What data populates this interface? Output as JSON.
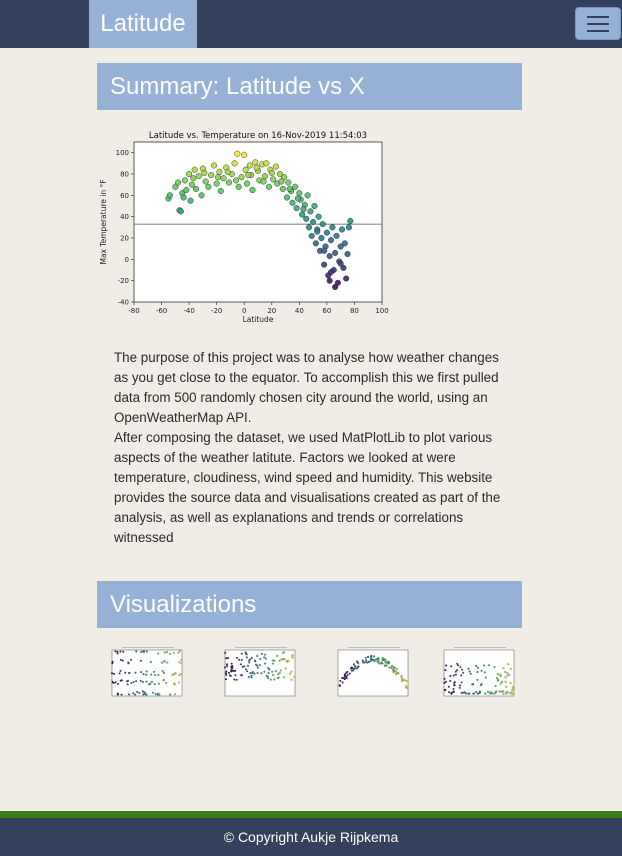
{
  "navbar": {
    "brand": "Latitude",
    "menu_icon": "hamburger-icon"
  },
  "summary": {
    "heading": "Summary: Latitude vs X",
    "paragraph1": "The purpose of this project was to analyse how weather changes as you get close to the equator. To accomplish this we first pulled data from 500 randomly chosen city around the world, using an OpenWeatherMap API.",
    "paragraph2": "After composing the dataset, we used MatPlotLib to plot various aspects of the weather latitute. Factors we looked at were temperature, cloudiness, wind speed and humidity. This website provides the source data and visualisations created as part of the analysis, as well as explanations and trends or correlations witnessed"
  },
  "visualizations": {
    "heading": "Visualizations",
    "thumbnails": [
      "cloudiness-thumbnail",
      "humidity-thumbnail",
      "temperature-thumbnail",
      "wind-speed-thumbnail"
    ]
  },
  "footer": {
    "text": "© Copyright Aukje Rijpkema",
    "accent_color": "#3a7d17"
  },
  "colors": {
    "nav": "#33415c",
    "accent": "#95b1d6",
    "background": "#efede6"
  },
  "chart_data": {
    "type": "scatter",
    "title": "Latitude vs. Temperature on 16-Nov-2019 11:54:03",
    "xlabel": "Latitude",
    "ylabel": "Max Temperature in °F",
    "xlim": [
      -80,
      100
    ],
    "ylim": [
      -40,
      110
    ],
    "xticks": [
      -80,
      -60,
      -40,
      -20,
      0,
      20,
      40,
      60,
      80,
      100
    ],
    "yticks": [
      -40,
      -20,
      0,
      20,
      40,
      60,
      80,
      100
    ],
    "hline": 33,
    "grid": false,
    "points": [
      [
        -55,
        57
      ],
      [
        -54,
        60
      ],
      [
        -50,
        68
      ],
      [
        -48,
        72
      ],
      [
        -47,
        46
      ],
      [
        -46,
        45
      ],
      [
        -45,
        62
      ],
      [
        -43,
        74
      ],
      [
        -42,
        65
      ],
      [
        -40,
        80
      ],
      [
        -39,
        55
      ],
      [
        -38,
        70
      ],
      [
        -36,
        84
      ],
      [
        -35,
        66
      ],
      [
        -33,
        78
      ],
      [
        -31,
        60
      ],
      [
        -30,
        85
      ],
      [
        -28,
        73
      ],
      [
        -26,
        68
      ],
      [
        -24,
        79
      ],
      [
        -22,
        88
      ],
      [
        -20,
        71
      ],
      [
        -18,
        82
      ],
      [
        -17,
        64
      ],
      [
        -15,
        76
      ],
      [
        -13,
        86
      ],
      [
        -11,
        72
      ],
      [
        -9,
        80
      ],
      [
        -7,
        90
      ],
      [
        -5,
        99
      ],
      [
        -4,
        68
      ],
      [
        -2,
        77
      ],
      [
        0,
        98
      ],
      [
        1,
        84
      ],
      [
        2,
        71
      ],
      [
        4,
        88
      ],
      [
        5,
        79
      ],
      [
        6,
        65
      ],
      [
        8,
        91
      ],
      [
        10,
        83
      ],
      [
        11,
        74
      ],
      [
        13,
        89
      ],
      [
        15,
        78
      ],
      [
        16,
        90
      ],
      [
        18,
        68
      ],
      [
        19,
        84
      ],
      [
        21,
        75
      ],
      [
        23,
        87
      ],
      [
        24,
        71
      ],
      [
        26,
        80
      ],
      [
        28,
        66
      ],
      [
        29,
        77
      ],
      [
        31,
        58
      ],
      [
        32,
        72
      ],
      [
        34,
        64
      ],
      [
        35,
        53
      ],
      [
        37,
        68
      ],
      [
        38,
        48
      ],
      [
        40,
        62
      ],
      [
        41,
        56
      ],
      [
        42,
        42
      ],
      [
        44,
        51
      ],
      [
        45,
        38
      ],
      [
        46,
        60
      ],
      [
        47,
        30
      ],
      [
        48,
        45
      ],
      [
        49,
        22
      ],
      [
        50,
        35
      ],
      [
        51,
        50
      ],
      [
        52,
        15
      ],
      [
        53,
        28
      ],
      [
        54,
        40
      ],
      [
        55,
        8
      ],
      [
        56,
        20
      ],
      [
        57,
        33
      ],
      [
        58,
        -5
      ],
      [
        59,
        12
      ],
      [
        60,
        25
      ],
      [
        61,
        -15
      ],
      [
        62,
        3
      ],
      [
        63,
        18
      ],
      [
        64,
        30
      ],
      [
        65,
        -10
      ],
      [
        66,
        6
      ],
      [
        67,
        22
      ],
      [
        68,
        -22
      ],
      [
        69,
        -2
      ],
      [
        70,
        12
      ],
      [
        71,
        28
      ],
      [
        72,
        -8
      ],
      [
        73,
        15
      ],
      [
        74,
        -18
      ],
      [
        75,
        5
      ],
      [
        76,
        30
      ],
      [
        77,
        36
      ],
      [
        -44,
        58
      ],
      [
        -37,
        76
      ],
      [
        -29,
        81
      ],
      [
        -19,
        77
      ],
      [
        -12,
        82
      ],
      [
        -6,
        74
      ],
      [
        3,
        79
      ],
      [
        9,
        86
      ],
      [
        14,
        73
      ],
      [
        20,
        81
      ],
      [
        27,
        73
      ],
      [
        33,
        66
      ],
      [
        39,
        57
      ],
      [
        43,
        47
      ],
      [
        53,
        26
      ],
      [
        58,
        8
      ],
      [
        63,
        -12
      ],
      [
        66,
        -26
      ],
      [
        70,
        -4
      ],
      [
        62,
        -20
      ]
    ]
  }
}
